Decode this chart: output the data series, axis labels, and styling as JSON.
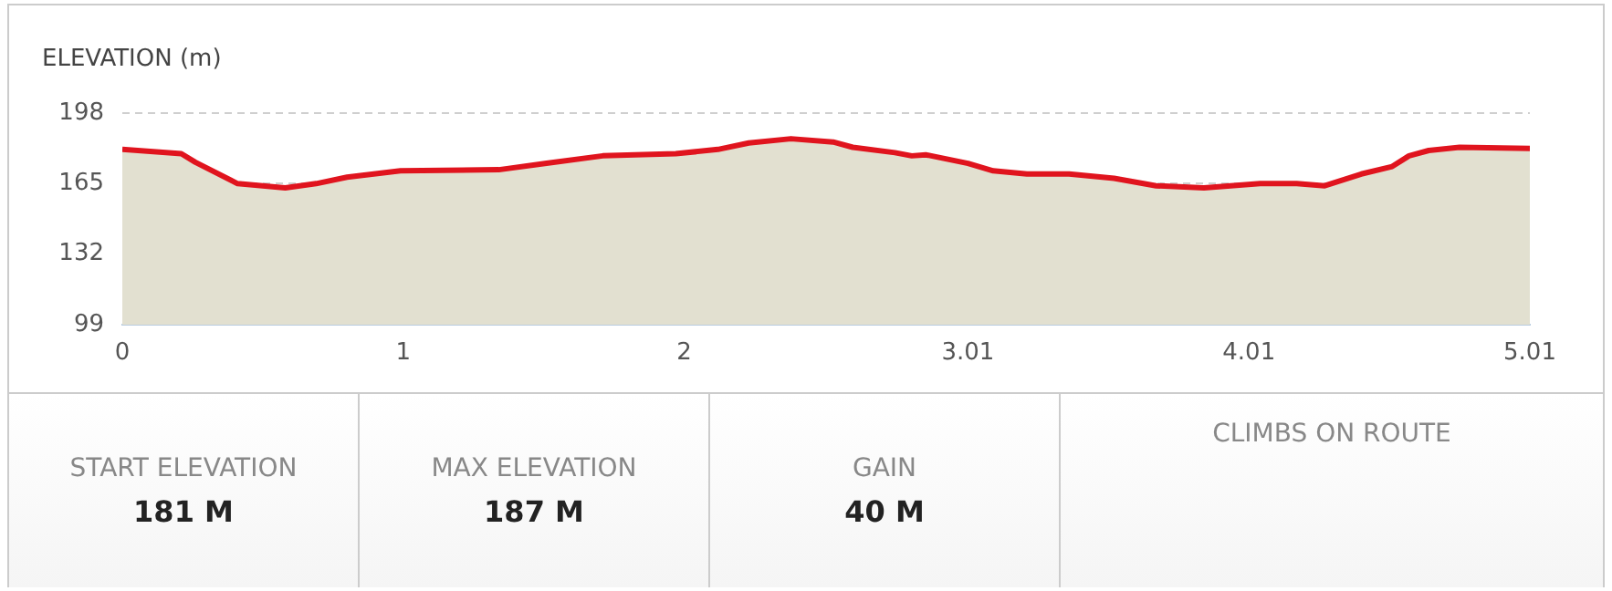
{
  "chart_data": {
    "type": "area",
    "title": "ELEVATION (m)",
    "x": [
      0,
      0.21,
      0.26,
      0.41,
      0.58,
      0.69,
      0.8,
      0.99,
      1.34,
      1.51,
      1.71,
      1.97,
      2.12,
      2.23,
      2.38,
      2.53,
      2.6,
      2.75,
      2.81,
      2.86,
      3.01,
      3.1,
      3.22,
      3.37,
      3.53,
      3.68,
      3.85,
      4.05,
      4.18,
      4.28,
      4.41,
      4.52,
      4.58,
      4.65,
      4.76,
      5.01
    ],
    "series": [
      {
        "color": "#e0141e",
        "values": [
          181,
          179,
          175,
          165,
          163,
          165,
          168,
          171,
          171.5,
          174.5,
          178,
          179,
          181,
          184,
          186,
          184.5,
          182,
          179.5,
          178,
          178.5,
          174.5,
          171,
          169.5,
          169.5,
          167.5,
          164,
          163,
          165,
          165,
          164,
          169.5,
          173,
          178,
          180.5,
          182,
          181.5
        ]
      }
    ],
    "xlim": [
      0,
      5.01
    ],
    "xticks": [
      0,
      1,
      2,
      3.01,
      4.01,
      5.01
    ],
    "ylim": [
      99,
      198
    ],
    "yticks": [
      99,
      132,
      165,
      198
    ],
    "grid": "y",
    "legend": false,
    "annotations": [
      "START ELEVATION",
      "181 M",
      "MAX ELEVATION",
      "187 M",
      "GAIN",
      "40 M",
      "CLIMBS ON ROUTE"
    ]
  }
}
